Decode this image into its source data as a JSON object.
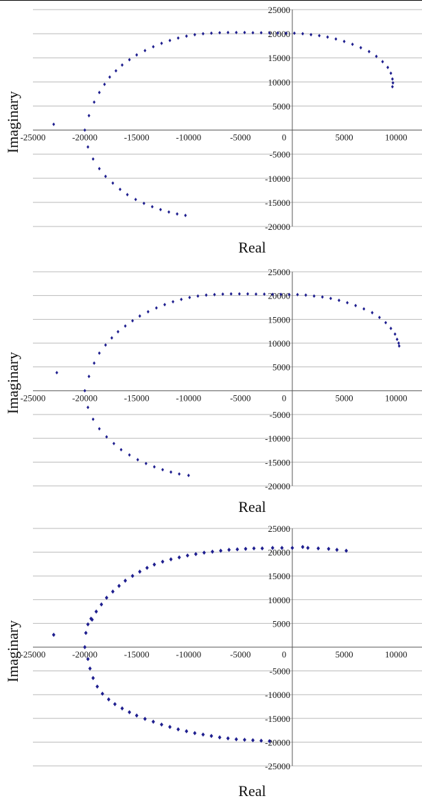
{
  "colors": {
    "marker": "#1f1f8f",
    "grid": "#b9b9b9",
    "axis": "#555555"
  },
  "chart_data": [
    {
      "type": "scatter",
      "title": "",
      "xlabel": "Real",
      "ylabel": "Imaginary",
      "xlim": [
        -25000,
        12500
      ],
      "ylim": [
        -20000,
        25000
      ],
      "x_ticks": [
        -25000,
        -20000,
        -15000,
        -10000,
        -5000,
        0,
        5000,
        10000
      ],
      "y_ticks": [
        25000,
        20000,
        15000,
        10000,
        5000,
        -5000,
        -10000,
        -15000,
        -20000
      ],
      "grid": true,
      "marker_size": 2.0,
      "series": [
        {
          "x": [
            -23000,
            -20000,
            -19600,
            -19100,
            -18600,
            -18100,
            -17600,
            -17000,
            -16400,
            -15700,
            -15000,
            -14200,
            -13400,
            -12600,
            -11800,
            -11000,
            -10200,
            -9400,
            -8600,
            -7800,
            -7000,
            -6200,
            -5400,
            -4600,
            -3800,
            -3000,
            -2200,
            -1400,
            -600,
            200,
            1000,
            1800,
            2600,
            3400,
            4200,
            5000,
            5800,
            6600,
            7400,
            8100,
            8700,
            9200,
            9500,
            9650,
            9700,
            9650,
            -19700,
            -19200,
            -18600,
            -18000,
            -17300,
            -16600,
            -15900,
            -15100,
            -14300,
            -13500,
            -12700,
            -11900,
            -11100,
            -10300
          ],
          "y": [
            1200,
            0,
            3000,
            5800,
            7800,
            9500,
            11000,
            12300,
            13500,
            14600,
            15600,
            16500,
            17300,
            18000,
            18600,
            19100,
            19500,
            19800,
            20000,
            20100,
            20200,
            20250,
            20250,
            20250,
            20200,
            20200,
            20150,
            20150,
            20100,
            20100,
            20000,
            19800,
            19600,
            19300,
            18900,
            18400,
            17800,
            17100,
            16300,
            15300,
            14200,
            13000,
            11800,
            10600,
            9800,
            9000,
            -3500,
            -6000,
            -8000,
            -9600,
            -11000,
            -12300,
            -13400,
            -14400,
            -15200,
            -15900,
            -16500,
            -17000,
            -17400,
            -17700
          ]
        }
      ]
    },
    {
      "type": "scatter",
      "title": "",
      "xlabel": "Real",
      "ylabel": "Imaginary",
      "xlim": [
        -25000,
        12500
      ],
      "ylim": [
        -20000,
        25000
      ],
      "x_ticks": [
        -25000,
        -20000,
        -15000,
        -10000,
        -5000,
        0,
        5000,
        10000
      ],
      "y_ticks": [
        25000,
        20000,
        15000,
        10000,
        5000,
        -5000,
        -10000,
        -15000,
        -20000
      ],
      "grid": true,
      "marker_size": 2.0,
      "series": [
        {
          "x": [
            -22700,
            -20000,
            -19600,
            -19100,
            -18600,
            -18000,
            -17400,
            -16800,
            -16100,
            -15400,
            -14700,
            -13900,
            -13100,
            -12300,
            -11500,
            -10700,
            -9900,
            -9100,
            -8300,
            -7500,
            -6700,
            -5900,
            -5100,
            -4300,
            -3500,
            -2700,
            -1900,
            -1100,
            -300,
            500,
            1300,
            2100,
            2900,
            3700,
            4500,
            5300,
            6100,
            6900,
            7700,
            8400,
            9000,
            9500,
            9900,
            10100,
            10250,
            10300,
            -19700,
            -19200,
            -18600,
            -17900,
            -17200,
            -16500,
            -15700,
            -14900,
            -14100,
            -13300,
            -12500,
            -11700,
            -10900,
            -10000
          ],
          "y": [
            3800,
            0,
            3000,
            5800,
            7900,
            9600,
            11100,
            12400,
            13600,
            14700,
            15700,
            16600,
            17400,
            18100,
            18700,
            19200,
            19600,
            19900,
            20100,
            20200,
            20300,
            20350,
            20350,
            20350,
            20300,
            20300,
            20250,
            20250,
            20200,
            20200,
            20100,
            19900,
            19700,
            19400,
            19000,
            18500,
            17900,
            17200,
            16400,
            15400,
            14300,
            13100,
            11900,
            10800,
            10000,
            9400,
            -3500,
            -6000,
            -8000,
            -9700,
            -11100,
            -12400,
            -13500,
            -14500,
            -15300,
            -16000,
            -16600,
            -17100,
            -17500,
            -17800
          ]
        }
      ]
    },
    {
      "type": "scatter",
      "title": "",
      "xlabel": "Real",
      "ylabel": "Imaginary",
      "xlim": [
        -25000,
        12500
      ],
      "ylim": [
        -25000,
        25000
      ],
      "x_ticks": [
        -25000,
        -20000,
        -15000,
        -10000,
        -5000,
        0,
        5000,
        10000
      ],
      "y_ticks": [
        25000,
        20000,
        15000,
        10000,
        5000,
        -5000,
        -10000,
        -15000,
        -20000,
        -25000
      ],
      "grid": true,
      "marker_size": 2.5,
      "series": [
        {
          "x": [
            -23000,
            -20000,
            -19900,
            -19700,
            -19300,
            -18900,
            -18400,
            -17900,
            -17300,
            -16700,
            -16100,
            -15400,
            -14700,
            -14000,
            -13300,
            -12500,
            -11700,
            -10900,
            -10100,
            -9300,
            -8500,
            -7700,
            -6900,
            -6100,
            -5300,
            -4500,
            -3700,
            -2900,
            -1900,
            -1000,
            0,
            1000,
            1500,
            2500,
            3500,
            4300,
            5200,
            -19400,
            -19700,
            -19500,
            -19200,
            -18800,
            -18300,
            -17700,
            -17100,
            -16400,
            -15700,
            -15000,
            -14200,
            -13400,
            -12600,
            -11800,
            -11000,
            -10200,
            -9400,
            -8600,
            -7800,
            -7000,
            -6200,
            -5400,
            -4600,
            -3800,
            -3000,
            -2200
          ],
          "y": [
            2600,
            0,
            3000,
            4800,
            5800,
            7500,
            9000,
            10400,
            11700,
            12900,
            14000,
            15000,
            15900,
            16700,
            17400,
            18000,
            18500,
            18900,
            19300,
            19600,
            19900,
            20100,
            20300,
            20500,
            20600,
            20700,
            20800,
            20800,
            20900,
            20900,
            20900,
            21100,
            20900,
            20800,
            20700,
            20500,
            20300,
            6000,
            -2500,
            -4500,
            -6500,
            -8300,
            -9800,
            -11000,
            -12000,
            -12900,
            -13700,
            -14400,
            -15100,
            -15700,
            -16300,
            -16800,
            -17300,
            -17700,
            -18100,
            -18400,
            -18700,
            -19000,
            -19200,
            -19400,
            -19500,
            -19600,
            -19700,
            -19800
          ]
        }
      ]
    }
  ]
}
